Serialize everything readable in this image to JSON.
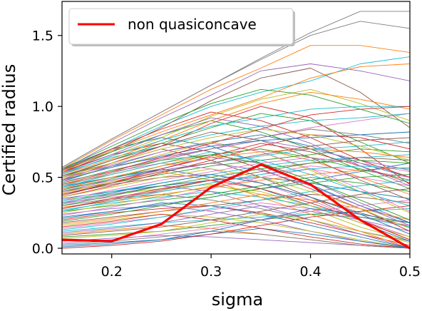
{
  "chart_data": {
    "type": "line",
    "xlabel": "sigma",
    "ylabel": "Certified radius",
    "xlim": [
      0.15,
      0.5
    ],
    "ylim": [
      -0.04,
      1.74
    ],
    "x": [
      0.15,
      0.2,
      0.25,
      0.3,
      0.35,
      0.4,
      0.45,
      0.5
    ],
    "xticks": [
      "0.2",
      "0.3",
      "0.4",
      "0.5"
    ],
    "yticks": [
      "0.0",
      "0.5",
      "1.0",
      "1.5"
    ],
    "grid": false,
    "legend": {
      "position": "top-left",
      "entries": [
        "non quasiconcave"
      ]
    },
    "highlight_color": "#ff0000",
    "series": [
      {
        "name": "non quasiconcave",
        "color": "#ff0000",
        "values": [
          0.06,
          0.05,
          0.17,
          0.43,
          0.59,
          0.45,
          0.2,
          0.0
        ]
      }
    ],
    "background_series": [
      {
        "color": "#808080",
        "values": [
          0.57,
          0.77,
          0.96,
          1.15,
          1.34,
          1.52,
          1.67,
          1.67
        ]
      },
      {
        "color": "#7f7f7f",
        "values": [
          0.57,
          0.77,
          0.96,
          1.15,
          1.33,
          1.5,
          1.6,
          1.55
        ]
      },
      {
        "color": "#ff7f0e",
        "values": [
          0.56,
          0.76,
          0.94,
          1.12,
          1.27,
          1.43,
          1.43,
          1.38
        ]
      },
      {
        "color": "#9467bd",
        "values": [
          0.55,
          0.74,
          0.92,
          1.08,
          1.25,
          1.3,
          1.25,
          1.18
        ]
      },
      {
        "color": "#17becf",
        "values": [
          0.54,
          0.7,
          0.86,
          1.0,
          1.1,
          1.18,
          1.3,
          1.35
        ]
      },
      {
        "color": "#8c564b",
        "values": [
          0.53,
          0.68,
          0.85,
          1.04,
          1.2,
          1.27,
          1.1,
          0.85
        ]
      },
      {
        "color": "#bcbd22",
        "values": [
          0.52,
          0.65,
          0.78,
          0.93,
          1.05,
          1.12,
          1.02,
          0.9
        ]
      },
      {
        "color": "#2ca02c",
        "values": [
          0.5,
          0.62,
          0.74,
          0.85,
          0.95,
          0.9,
          0.75,
          0.6
        ]
      },
      {
        "color": "#d62728",
        "values": [
          0.48,
          0.6,
          0.72,
          0.88,
          1.0,
          0.92,
          0.7,
          0.45
        ]
      },
      {
        "color": "#1f77b4",
        "values": [
          0.47,
          0.58,
          0.68,
          0.75,
          0.8,
          0.72,
          0.6,
          0.5
        ]
      },
      {
        "color": "#e377c2",
        "values": [
          0.46,
          0.55,
          0.63,
          0.7,
          0.78,
          0.85,
          0.9,
          0.95
        ]
      },
      {
        "color": "#ff7f0e",
        "values": [
          0.45,
          0.52,
          0.6,
          0.66,
          0.7,
          0.62,
          0.5,
          0.38
        ]
      },
      {
        "color": "#17becf",
        "values": [
          0.44,
          0.5,
          0.55,
          0.6,
          0.65,
          0.7,
          0.72,
          0.75
        ]
      },
      {
        "color": "#9467bd",
        "values": [
          0.42,
          0.48,
          0.56,
          0.64,
          0.6,
          0.48,
          0.32,
          0.18
        ]
      },
      {
        "color": "#2ca02c",
        "values": [
          0.4,
          0.46,
          0.52,
          0.58,
          0.62,
          0.66,
          0.7,
          0.68
        ]
      },
      {
        "color": "#8c564b",
        "values": [
          0.38,
          0.45,
          0.5,
          0.52,
          0.46,
          0.36,
          0.25,
          0.15
        ]
      },
      {
        "color": "#d62728",
        "values": [
          0.36,
          0.44,
          0.53,
          0.62,
          0.72,
          0.8,
          0.78,
          0.7
        ]
      },
      {
        "color": "#1f77b4",
        "values": [
          0.35,
          0.4,
          0.44,
          0.48,
          0.5,
          0.46,
          0.4,
          0.35
        ]
      },
      {
        "color": "#bcbd22",
        "values": [
          0.34,
          0.38,
          0.42,
          0.45,
          0.38,
          0.28,
          0.15,
          0.05
        ]
      },
      {
        "color": "#e377c2",
        "values": [
          0.32,
          0.36,
          0.4,
          0.46,
          0.52,
          0.58,
          0.55,
          0.5
        ]
      },
      {
        "color": "#7f7f7f",
        "values": [
          0.3,
          0.35,
          0.38,
          0.34,
          0.28,
          0.2,
          0.12,
          0.05
        ]
      },
      {
        "color": "#ff7f0e",
        "values": [
          0.29,
          0.33,
          0.38,
          0.43,
          0.48,
          0.52,
          0.55,
          0.57
        ]
      },
      {
        "color": "#17becf",
        "values": [
          0.27,
          0.32,
          0.36,
          0.4,
          0.36,
          0.3,
          0.22,
          0.15
        ]
      },
      {
        "color": "#2ca02c",
        "values": [
          0.26,
          0.3,
          0.34,
          0.38,
          0.44,
          0.5,
          0.46,
          0.4
        ]
      },
      {
        "color": "#9467bd",
        "values": [
          0.24,
          0.28,
          0.3,
          0.26,
          0.2,
          0.12,
          0.05,
          0.0
        ]
      },
      {
        "color": "#1f77b4",
        "values": [
          0.22,
          0.26,
          0.31,
          0.36,
          0.42,
          0.48,
          0.54,
          0.6
        ]
      },
      {
        "color": "#d62728",
        "values": [
          0.2,
          0.25,
          0.28,
          0.3,
          0.25,
          0.18,
          0.1,
          0.02
        ]
      },
      {
        "color": "#8c564b",
        "values": [
          0.18,
          0.22,
          0.26,
          0.3,
          0.34,
          0.38,
          0.36,
          0.32
        ]
      },
      {
        "color": "#bcbd22",
        "values": [
          0.16,
          0.2,
          0.24,
          0.22,
          0.18,
          0.12,
          0.06,
          0.0
        ]
      },
      {
        "color": "#e377c2",
        "values": [
          0.14,
          0.18,
          0.22,
          0.27,
          0.32,
          0.28,
          0.22,
          0.16
        ]
      },
      {
        "color": "#17becf",
        "values": [
          0.12,
          0.15,
          0.18,
          0.2,
          0.22,
          0.24,
          0.26,
          0.28
        ]
      },
      {
        "color": "#ff7f0e",
        "values": [
          0.1,
          0.13,
          0.16,
          0.14,
          0.1,
          0.06,
          0.02,
          0.0
        ]
      },
      {
        "color": "#2ca02c",
        "values": [
          0.08,
          0.1,
          0.12,
          0.16,
          0.2,
          0.24,
          0.22,
          0.18
        ]
      },
      {
        "color": "#9467bd",
        "values": [
          0.05,
          0.07,
          0.09,
          0.08,
          0.06,
          0.04,
          0.02,
          0.0
        ]
      },
      {
        "color": "#1f77b4",
        "values": [
          0.02,
          0.04,
          0.06,
          0.1,
          0.14,
          0.1,
          0.05,
          0.0
        ]
      },
      {
        "color": "#d62728",
        "values": [
          0.0,
          0.02,
          0.05,
          0.1,
          0.16,
          0.22,
          0.26,
          0.3
        ]
      },
      {
        "color": "#1f77b4",
        "values": [
          0.56,
          0.7,
          0.78,
          0.72,
          0.6,
          0.45,
          0.3,
          0.18
        ]
      },
      {
        "color": "#2ca02c",
        "values": [
          0.55,
          0.68,
          0.8,
          0.9,
          0.82,
          0.7,
          0.55,
          0.42
        ]
      },
      {
        "color": "#d62728",
        "values": [
          0.54,
          0.66,
          0.74,
          0.68,
          0.56,
          0.42,
          0.28,
          0.12
        ]
      },
      {
        "color": "#17becf",
        "values": [
          0.53,
          0.64,
          0.72,
          0.8,
          0.86,
          0.9,
          0.92,
          0.95
        ]
      },
      {
        "color": "#ff7f0e",
        "values": [
          0.52,
          0.63,
          0.76,
          0.9,
          1.02,
          1.1,
          1.05,
          0.98
        ]
      },
      {
        "color": "#8c564b",
        "values": [
          0.51,
          0.6,
          0.7,
          0.62,
          0.5,
          0.36,
          0.2,
          0.06
        ]
      },
      {
        "color": "#9467bd",
        "values": [
          0.5,
          0.58,
          0.64,
          0.7,
          0.76,
          0.7,
          0.62,
          0.55
        ]
      },
      {
        "color": "#bcbd22",
        "values": [
          0.49,
          0.57,
          0.66,
          0.75,
          0.68,
          0.55,
          0.4,
          0.25
        ]
      },
      {
        "color": "#e377c2",
        "values": [
          0.47,
          0.54,
          0.6,
          0.56,
          0.46,
          0.34,
          0.2,
          0.08
        ]
      },
      {
        "color": "#7f7f7f",
        "values": [
          0.44,
          0.53,
          0.62,
          0.7,
          0.78,
          0.84,
          0.8,
          0.74
        ]
      },
      {
        "color": "#1f77b4",
        "values": [
          0.43,
          0.5,
          0.56,
          0.5,
          0.42,
          0.3,
          0.18,
          0.05
        ]
      },
      {
        "color": "#2ca02c",
        "values": [
          0.41,
          0.49,
          0.58,
          0.66,
          0.7,
          0.64,
          0.56,
          0.48
        ]
      },
      {
        "color": "#ff7f0e",
        "values": [
          0.39,
          0.47,
          0.54,
          0.48,
          0.36,
          0.24,
          0.12,
          0.0
        ]
      },
      {
        "color": "#d62728",
        "values": [
          0.37,
          0.46,
          0.56,
          0.65,
          0.74,
          0.68,
          0.58,
          0.46
        ]
      },
      {
        "color": "#17becf",
        "values": [
          0.33,
          0.4,
          0.46,
          0.52,
          0.58,
          0.62,
          0.64,
          0.66
        ]
      },
      {
        "color": "#9467bd",
        "values": [
          0.31,
          0.38,
          0.44,
          0.4,
          0.3,
          0.2,
          0.1,
          0.0
        ]
      },
      {
        "color": "#8c564b",
        "values": [
          0.28,
          0.34,
          0.41,
          0.48,
          0.54,
          0.6,
          0.64,
          0.62
        ]
      },
      {
        "color": "#bcbd22",
        "values": [
          0.25,
          0.31,
          0.37,
          0.44,
          0.4,
          0.3,
          0.18,
          0.08
        ]
      },
      {
        "color": "#e377c2",
        "values": [
          0.23,
          0.29,
          0.35,
          0.42,
          0.5,
          0.56,
          0.5,
          0.44
        ]
      },
      {
        "color": "#1f77b4",
        "values": [
          0.21,
          0.26,
          0.32,
          0.3,
          0.24,
          0.16,
          0.08,
          0.0
        ]
      },
      {
        "color": "#2ca02c",
        "values": [
          0.19,
          0.24,
          0.3,
          0.36,
          0.42,
          0.46,
          0.5,
          0.52
        ]
      },
      {
        "color": "#ff7f0e",
        "values": [
          0.17,
          0.21,
          0.26,
          0.32,
          0.38,
          0.34,
          0.28,
          0.2
        ]
      },
      {
        "color": "#d62728",
        "values": [
          0.15,
          0.19,
          0.24,
          0.2,
          0.14,
          0.08,
          0.03,
          0.0
        ]
      },
      {
        "color": "#17becf",
        "values": [
          0.13,
          0.17,
          0.22,
          0.28,
          0.34,
          0.4,
          0.44,
          0.48
        ]
      },
      {
        "color": "#9467bd",
        "values": [
          0.11,
          0.14,
          0.18,
          0.24,
          0.3,
          0.26,
          0.2,
          0.12
        ]
      },
      {
        "color": "#8c564b",
        "values": [
          0.09,
          0.12,
          0.15,
          0.2,
          0.26,
          0.32,
          0.38,
          0.42
        ]
      },
      {
        "color": "#bcbd22",
        "values": [
          0.07,
          0.09,
          0.12,
          0.18,
          0.24,
          0.2,
          0.12,
          0.04
        ]
      },
      {
        "color": "#e377c2",
        "values": [
          0.04,
          0.06,
          0.1,
          0.14,
          0.2,
          0.26,
          0.3,
          0.34
        ]
      },
      {
        "color": "#7f7f7f",
        "values": [
          0.03,
          0.05,
          0.08,
          0.12,
          0.1,
          0.06,
          0.02,
          0.0
        ]
      },
      {
        "color": "#1f77b4",
        "values": [
          0.01,
          0.03,
          0.06,
          0.12,
          0.2,
          0.28,
          0.24,
          0.18
        ]
      },
      {
        "color": "#2ca02c",
        "values": [
          0.56,
          0.72,
          0.88,
          1.02,
          1.12,
          1.08,
          0.98,
          0.88
        ]
      },
      {
        "color": "#d62728",
        "values": [
          0.55,
          0.7,
          0.84,
          0.96,
          0.9,
          0.78,
          0.62,
          0.5
        ]
      },
      {
        "color": "#ff7f0e",
        "values": [
          0.54,
          0.69,
          0.82,
          0.94,
          1.06,
          1.2,
          1.28,
          1.3
        ]
      },
      {
        "color": "#9467bd",
        "values": [
          0.53,
          0.66,
          0.8,
          0.92,
          0.86,
          0.74,
          0.58,
          0.44
        ]
      },
      {
        "color": "#17becf",
        "values": [
          0.52,
          0.65,
          0.76,
          0.86,
          0.92,
          0.98,
          1.0,
          1.0
        ]
      },
      {
        "color": "#8c564b",
        "values": [
          0.51,
          0.62,
          0.72,
          0.82,
          0.76,
          0.64,
          0.48,
          0.34
        ]
      },
      {
        "color": "#bcbd22",
        "values": [
          0.5,
          0.6,
          0.7,
          0.78,
          0.84,
          0.8,
          0.72,
          0.62
        ]
      },
      {
        "color": "#e377c2",
        "values": [
          0.49,
          0.59,
          0.68,
          0.74,
          0.68,
          0.56,
          0.42,
          0.26
        ]
      },
      {
        "color": "#1f77b4",
        "values": [
          0.48,
          0.57,
          0.65,
          0.72,
          0.76,
          0.78,
          0.8,
          0.82
        ]
      },
      {
        "color": "#2ca02c",
        "values": [
          0.46,
          0.55,
          0.62,
          0.66,
          0.6,
          0.48,
          0.34,
          0.2
        ]
      },
      {
        "color": "#d62728",
        "values": [
          0.45,
          0.54,
          0.64,
          0.74,
          0.84,
          0.94,
          0.98,
          1.0
        ]
      },
      {
        "color": "#17becf",
        "values": [
          0.43,
          0.52,
          0.6,
          0.68,
          0.62,
          0.52,
          0.4,
          0.3
        ]
      },
      {
        "color": "#ff7f0e",
        "values": [
          0.42,
          0.5,
          0.58,
          0.64,
          0.68,
          0.7,
          0.68,
          0.64
        ]
      },
      {
        "color": "#9467bd",
        "values": [
          0.4,
          0.48,
          0.55,
          0.6,
          0.55,
          0.44,
          0.3,
          0.16
        ]
      },
      {
        "color": "#8c564b",
        "values": [
          0.38,
          0.46,
          0.54,
          0.6,
          0.66,
          0.72,
          0.76,
          0.78
        ]
      },
      {
        "color": "#bcbd22",
        "values": [
          0.36,
          0.43,
          0.5,
          0.56,
          0.5,
          0.4,
          0.28,
          0.14
        ]
      },
      {
        "color": "#e377c2",
        "values": [
          0.34,
          0.41,
          0.48,
          0.54,
          0.6,
          0.64,
          0.6,
          0.54
        ]
      },
      {
        "color": "#1f77b4",
        "values": [
          0.32,
          0.39,
          0.46,
          0.52,
          0.46,
          0.36,
          0.24,
          0.1
        ]
      },
      {
        "color": "#2ca02c",
        "values": [
          0.3,
          0.37,
          0.44,
          0.5,
          0.56,
          0.6,
          0.62,
          0.6
        ]
      },
      {
        "color": "#d62728",
        "values": [
          0.28,
          0.35,
          0.42,
          0.48,
          0.42,
          0.32,
          0.2,
          0.06
        ]
      },
      {
        "color": "#17becf",
        "values": [
          0.26,
          0.33,
          0.4,
          0.46,
          0.52,
          0.56,
          0.58,
          0.56
        ]
      }
    ]
  }
}
